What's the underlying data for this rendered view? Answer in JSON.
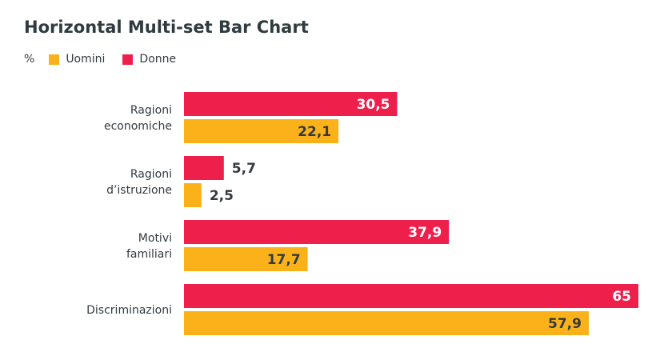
{
  "chart_data": {
    "type": "bar",
    "orientation": "horizontal",
    "title": "Horizontal Multi-set Bar Chart",
    "unit_label": "%",
    "categories": [
      [
        "Ragioni",
        "economiche"
      ],
      [
        "Ragioni",
        "d’istruzione"
      ],
      [
        "Motivi",
        "familiari"
      ],
      [
        "Discriminazioni"
      ]
    ],
    "series": [
      {
        "name": "Donne",
        "color": "#ee1f4b",
        "values": [
          30.5,
          5.7,
          37.9,
          65
        ],
        "labels": [
          "30,5",
          "5,7",
          "37,9",
          "65"
        ]
      },
      {
        "name": "Uomini",
        "color": "#fbb21a",
        "values": [
          22.1,
          2.5,
          17.7,
          57.9
        ],
        "labels": [
          "22,1",
          "2,5",
          "17,7",
          "57,9"
        ]
      }
    ],
    "legend_order": [
      "Uomini",
      "Donne"
    ],
    "xlim": [
      0,
      65
    ],
    "grid": false,
    "legend_position": "top-left"
  }
}
